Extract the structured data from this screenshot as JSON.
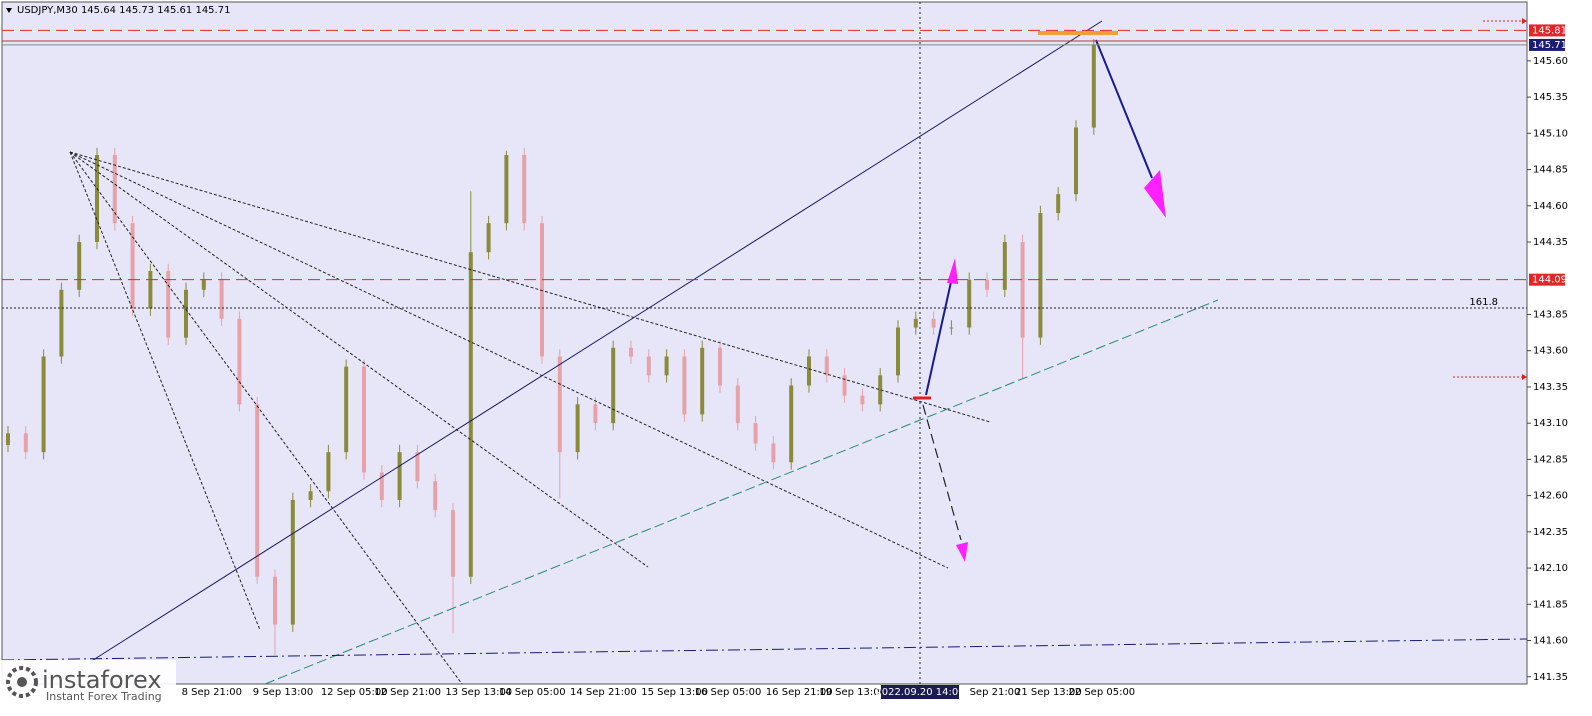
{
  "chart_data": {
    "type": "candlestick",
    "title": "USDJPY,M30 145.64 145.73 145.61 145.71",
    "categories": [
      null,
      null,
      null,
      null,
      null,
      null,
      null,
      null,
      null,
      null,
      null,
      "8 Sep 21:00",
      null,
      null,
      null,
      "9 Sep 13:00",
      null,
      null,
      null,
      "12 Sep 05:00",
      null,
      null,
      "12 Sep 21:00",
      null,
      null,
      null,
      "13 Sep 13:00",
      null,
      null,
      "14 Sep 05:00",
      null,
      null,
      null,
      "14 Sep 21:00",
      null,
      null,
      null,
      "15 Sep 13:00",
      null,
      null,
      "16 Sep 05:00",
      null,
      null,
      null,
      "16 Sep 21:00",
      null,
      null,
      "19 Sep 13:00",
      null,
      null,
      null,
      null,
      null,
      null,
      null,
      "Sep 21:00",
      null,
      null,
      "21 Sep 13:00",
      null,
      null,
      "22 Sep 05:00"
    ],
    "open": [
      142.95,
      143.03,
      142.9,
      143.56,
      144.02,
      144.35,
      144.95,
      144.48,
      143.89,
      144.15,
      143.69,
      144.02,
      144.09,
      143.82,
      143.23,
      142.04,
      141.71,
      142.57,
      142.63,
      142.9,
      143.49,
      142.76,
      142.57,
      142.9,
      142.7,
      142.5,
      142.04,
      144.28,
      144.48,
      144.95,
      144.48,
      143.56,
      142.9,
      143.23,
      143.1,
      143.62,
      143.56,
      143.43,
      143.56,
      143.16,
      143.62,
      143.36,
      143.1,
      142.96,
      142.83,
      143.36,
      143.56,
      143.43,
      143.29,
      143.23,
      143.43,
      143.76,
      143.82,
      143.76,
      143.76,
      144.09,
      144.02,
      144.35,
      143.69,
      144.55,
      144.68,
      145.14
    ],
    "high": [
      143.08,
      143.08,
      143.61,
      144.07,
      144.4,
      145.0,
      145.0,
      144.53,
      144.2,
      144.2,
      144.07,
      144.14,
      144.14,
      143.87,
      143.28,
      142.09,
      142.62,
      142.68,
      142.95,
      143.54,
      143.54,
      142.81,
      142.95,
      142.95,
      142.75,
      142.55,
      144.7,
      144.53,
      144.98,
      145.0,
      144.53,
      143.61,
      143.28,
      143.28,
      143.67,
      143.67,
      143.61,
      143.61,
      143.61,
      143.67,
      143.67,
      143.41,
      143.15,
      143.01,
      143.41,
      143.61,
      143.61,
      143.48,
      143.34,
      143.48,
      143.81,
      143.87,
      143.87,
      143.81,
      144.14,
      144.14,
      144.4,
      144.4,
      144.6,
      144.73,
      145.19,
      145.75
    ],
    "low": [
      142.9,
      142.85,
      142.85,
      143.51,
      143.97,
      144.3,
      144.43,
      143.84,
      143.84,
      143.64,
      143.64,
      143.97,
      143.77,
      143.18,
      141.99,
      141.5,
      141.66,
      142.52,
      142.58,
      142.85,
      142.71,
      142.52,
      142.52,
      142.65,
      142.45,
      141.65,
      141.99,
      144.23,
      144.43,
      144.43,
      143.51,
      142.58,
      142.85,
      143.05,
      143.05,
      143.51,
      143.38,
      143.38,
      143.11,
      143.11,
      143.31,
      143.05,
      142.91,
      142.78,
      142.78,
      143.31,
      143.38,
      143.24,
      143.18,
      143.18,
      143.38,
      143.71,
      143.71,
      143.71,
      143.71,
      143.97,
      143.97,
      143.41,
      143.64,
      144.5,
      144.63,
      145.09
    ],
    "close": [
      143.03,
      142.9,
      143.56,
      144.02,
      144.35,
      144.95,
      144.48,
      143.89,
      144.15,
      143.69,
      144.02,
      144.09,
      143.82,
      143.23,
      142.04,
      141.71,
      142.57,
      142.63,
      142.9,
      143.49,
      142.76,
      142.57,
      142.9,
      142.7,
      142.5,
      142.04,
      144.28,
      144.48,
      144.95,
      144.48,
      143.56,
      142.9,
      143.23,
      143.1,
      143.62,
      143.56,
      143.43,
      143.56,
      143.16,
      143.62,
      143.36,
      143.1,
      142.96,
      142.83,
      143.36,
      143.56,
      143.43,
      143.29,
      143.23,
      143.43,
      143.76,
      143.82,
      143.76,
      143.76,
      144.09,
      144.02,
      144.35,
      143.69,
      144.55,
      144.68,
      145.14,
      145.71
    ],
    "colors": {
      "up": "#8a8a3a",
      "down": "#e6a2a8",
      "level": "#e02828",
      "last": "#1c1c70"
    },
    "ylim": [
      141.3,
      146.02
    ],
    "yticks": [
      141.35,
      {
        "value": 141.6,
        "label": "141.60"
      },
      141.85,
      {
        "value": 142.1,
        "label": "142.10"
      },
      142.35,
      {
        "value": 142.6,
        "label": "142.60"
      },
      142.85,
      {
        "value": 143.1,
        "label": "143.10"
      },
      143.35,
      {
        "value": 143.6,
        "label": "143.60"
      },
      143.85,
      144.35,
      {
        "value": 144.6,
        "label": "144.60"
      },
      144.85,
      {
        "value": 145.1,
        "label": "145.10"
      },
      145.35,
      {
        "value": 145.6,
        "label": "145.60"
      }
    ],
    "price_levels": [
      145.81,
      144.09
    ],
    "last_price": 145.71,
    "annotation": "161.8",
    "crosshair_label": "2022.09.20 14:00"
  },
  "logo": {
    "name": "instaforex",
    "tagline": "Instant Forex Trading"
  }
}
